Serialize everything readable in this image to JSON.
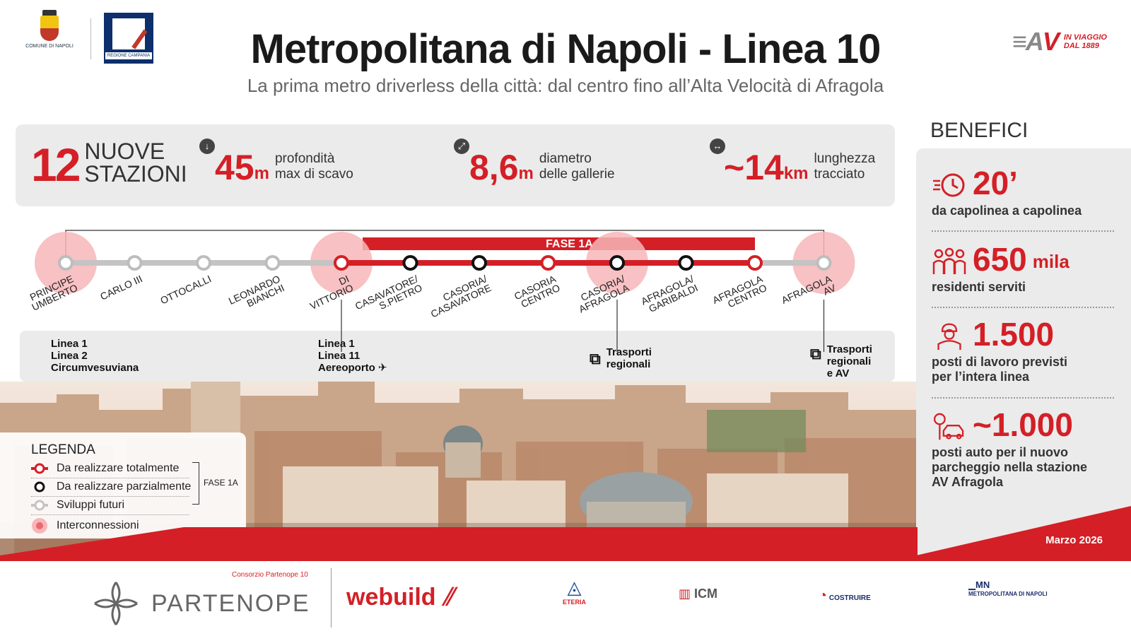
{
  "header": {
    "title": "Metropolitana di Napoli - Linea 10",
    "subtitle": "La prima metro driverless della città: dal centro fino all’Alta Velocità di Afragola",
    "comune_label": "COMUNE DI NAPOLI",
    "regione_label": "REGIONE CAMPANIA",
    "eav_tagline_1": "IN VIAGGIO",
    "eav_tagline_2": "DAL 1889"
  },
  "stats": [
    {
      "value": "12",
      "unit": "",
      "label_1": "NUOVE",
      "label_2": "STAZIONI"
    },
    {
      "value": "45",
      "unit": "m",
      "label_1": "profondità",
      "label_2": "max di scavo",
      "icon": "arrow-down-icon"
    },
    {
      "value": "8,6",
      "unit": "m",
      "label_1": "diametro",
      "label_2": "delle gallerie",
      "icon": "diameter-icon"
    },
    {
      "value": "~14",
      "unit": "km",
      "label_1": "lunghezza",
      "label_2": "tracciato",
      "icon": "horizontal-arrows-icon"
    }
  ],
  "line": {
    "phase_label": "FASE 1A",
    "stations": [
      {
        "name": "PRINCIPE UMBERTO",
        "type": "future",
        "interchange": true
      },
      {
        "name": "CARLO III",
        "type": "future",
        "interchange": false
      },
      {
        "name": "OTTOCALLI",
        "type": "future",
        "interchange": false
      },
      {
        "name": "LEONARDO BIANCHI",
        "type": "future",
        "interchange": false
      },
      {
        "name": "DI VITTORIO",
        "type": "full",
        "interchange": true
      },
      {
        "name": "CASAVATORE/ S.PIETRO",
        "type": "partial",
        "interchange": false
      },
      {
        "name": "CASORIA/ CASAVATORE",
        "type": "partial",
        "interchange": false
      },
      {
        "name": "CASORIA CENTRO",
        "type": "full",
        "interchange": false
      },
      {
        "name": "CASORIA/ AFRAGOLA",
        "type": "partial",
        "interchange": true
      },
      {
        "name": "AFRAGOLA/ GARIBALDI",
        "type": "partial",
        "interchange": false
      },
      {
        "name": "AFRAGOLA CENTRO",
        "type": "full",
        "interchange": false
      },
      {
        "name": "AFRAGOLA AV",
        "type": "future",
        "interchange": true
      }
    ],
    "connections": [
      {
        "lines": [
          "Linea 1",
          "Linea 2",
          "Circumvesuviana"
        ]
      },
      {
        "lines": [
          "Linea 1",
          "Linea 11",
          "Aereoporto"
        ],
        "icon": "airplane-icon"
      },
      {
        "lines": [
          "Trasporti",
          "regionali"
        ],
        "icon": "train-icon"
      },
      {
        "lines": [
          "Trasporti",
          "regionali",
          "e AV"
        ],
        "icon": "train-icon"
      }
    ]
  },
  "legend": {
    "title": "LEGENDA",
    "items": [
      "Da realizzare totalmente",
      "Da realizzare parzialmente",
      "Sviluppi futuri",
      "Interconnessioni"
    ],
    "phase_label": "FASE 1A"
  },
  "benefici": {
    "title": "BENEFICI",
    "items": [
      {
        "value": "20’",
        "unit": "",
        "desc_1": "da capolinea a capolinea",
        "desc_2": "",
        "desc_3": "",
        "icon": "clock-icon"
      },
      {
        "value": "650",
        "unit": "mila",
        "desc_1": "residenti serviti",
        "desc_2": "",
        "desc_3": "",
        "icon": "people-icon"
      },
      {
        "value": "1.500",
        "unit": "",
        "desc_1": "posti di lavoro previsti",
        "desc_2": "per l’intera linea",
        "desc_3": "",
        "icon": "worker-icon"
      },
      {
        "value": "~1.000",
        "unit": "",
        "desc_1": "posti auto per il nuovo",
        "desc_2": "parcheggio nella stazione",
        "desc_3": "AV Afragola",
        "icon": "car-parking-icon"
      }
    ],
    "date": "Marzo 2026"
  },
  "footer": {
    "consortium_label": "Consorzio Partenope 10",
    "partenope": "PARTENOPE",
    "webuild": "webuild",
    "eteria": "ETERIA",
    "icm": "ICM",
    "costruire": "COSTRUIRE",
    "metro_napoli": "METROPOLITANA DI NAPOLI"
  },
  "colors": {
    "red": "#d41f26",
    "gray_line": "#c4c4c4",
    "panel": "#ebebeb",
    "interchange": "#f7b6b8"
  }
}
